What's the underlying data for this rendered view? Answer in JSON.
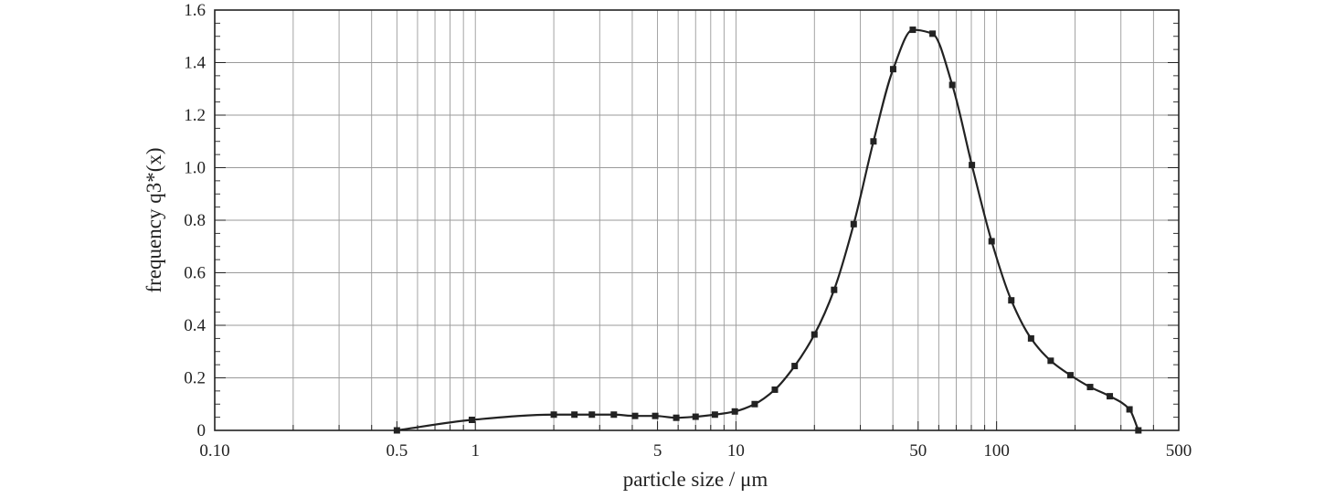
{
  "chart_data": {
    "type": "line",
    "title": "",
    "xlabel": "particle size / μm",
    "ylabel": "frequency q3*(x)",
    "x_scale": "log",
    "xlim": [
      0.1,
      500
    ],
    "ylim": [
      0,
      1.6
    ],
    "x_ticks": [
      {
        "value": 0.1,
        "label": "0.10"
      },
      {
        "value": 0.5,
        "label": "0.5"
      },
      {
        "value": 1,
        "label": "1"
      },
      {
        "value": 5,
        "label": "5"
      },
      {
        "value": 10,
        "label": "10"
      },
      {
        "value": 50,
        "label": "50"
      },
      {
        "value": 100,
        "label": "100"
      },
      {
        "value": 500,
        "label": "500"
      }
    ],
    "y_ticks": [
      {
        "value": 0,
        "label": "0"
      },
      {
        "value": 0.2,
        "label": "0.2"
      },
      {
        "value": 0.4,
        "label": "0.4"
      },
      {
        "value": 0.6,
        "label": "0.6"
      },
      {
        "value": 0.8,
        "label": "0.8"
      },
      {
        "value": 1.0,
        "label": "1.0"
      },
      {
        "value": 1.2,
        "label": "1.2"
      },
      {
        "value": 1.4,
        "label": "1.4"
      },
      {
        "value": 1.6,
        "label": "1.6"
      }
    ],
    "grid": true,
    "legend": "none",
    "series": [
      {
        "marker": "square",
        "color": "#222222",
        "x": [
          0.5,
          0.97,
          2.0,
          2.4,
          2.8,
          3.4,
          4.1,
          4.9,
          5.9,
          7.0,
          8.3,
          9.9,
          11.8,
          14.1,
          16.8,
          20.0,
          23.8,
          28.3,
          33.7,
          40.1,
          47.7,
          56.8,
          67.6,
          80.4,
          95.7,
          113.9,
          135.6,
          161.3,
          192.0,
          228.5,
          271.9,
          323.6,
          350.0
        ],
        "y": [
          0.0,
          0.04,
          0.06,
          0.06,
          0.06,
          0.06,
          0.055,
          0.055,
          0.048,
          0.052,
          0.06,
          0.072,
          0.1,
          0.155,
          0.245,
          0.365,
          0.535,
          0.785,
          1.1,
          1.375,
          1.525,
          1.51,
          1.315,
          1.01,
          0.72,
          0.495,
          0.35,
          0.265,
          0.21,
          0.165,
          0.13,
          0.08,
          0.0
        ]
      }
    ]
  }
}
